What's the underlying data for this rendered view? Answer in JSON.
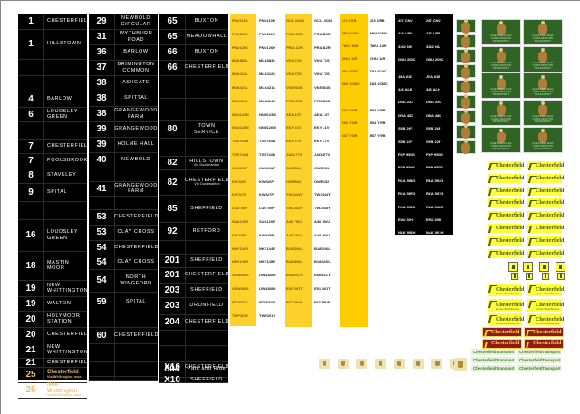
{
  "sheet": {
    "blind1": {
      "rows": [
        {
          "num": "1",
          "dest": "CHESTERFIELD"
        },
        {
          "num": "1",
          "dest": "HILLSTOWN"
        },
        {
          "num": "",
          "dest": ""
        },
        {
          "num": "",
          "dest": ""
        },
        {
          "num": "4",
          "dest": "BARLOW"
        },
        {
          "num": "6",
          "dest": "LOUDSLEY GREEN"
        },
        {
          "num": "",
          "dest": ""
        },
        {
          "num": "7",
          "dest": "CHESTERFIELD"
        },
        {
          "num": "7",
          "dest": "POOLSBROOK"
        },
        {
          "num": "8",
          "dest": "STAVELEY"
        },
        {
          "num": "9",
          "dest": "SPITAL"
        },
        {
          "num": "",
          "dest": ""
        },
        {
          "num": "16",
          "dest": "LOUDSLEY GREEN"
        },
        {
          "num": "18",
          "dest": "MASTIN MOOR"
        },
        {
          "num": "19",
          "dest": "NEW WHITTINGTON"
        },
        {
          "num": "19",
          "dest": "WALTON"
        },
        {
          "num": "20",
          "dest": "HOLYMOOR STATION"
        },
        {
          "num": "20",
          "dest": "CHESTERFIELD"
        },
        {
          "num": "21",
          "dest": "NEW WHITTINGTON"
        },
        {
          "num": "21",
          "dest": "CHESTERFIELD"
        },
        {
          "num": "25",
          "dest": "Chesterfield",
          "via": "Via Whittington moor"
        },
        {
          "num": "25",
          "dest": "New Whittington",
          "via": "Via Whittington moor"
        }
      ]
    },
    "blind2": {
      "rows": [
        {
          "num": "29",
          "dest": "NEWBOLD CIRCULAR"
        },
        {
          "num": "31",
          "dest": "WYTHBURN ROAD"
        },
        {
          "num": "36",
          "dest": "BARLOW"
        },
        {
          "num": "37",
          "dest": "BRIMINGTON COMMON"
        },
        {
          "num": "38",
          "dest": "ASHGATE"
        },
        {
          "num": "38",
          "dest": "SPITTAL"
        },
        {
          "num": "38",
          "dest": "GRANGEWOOD FARM"
        },
        {
          "num": "39",
          "dest": "GRANGEWOOD"
        },
        {
          "num": "39",
          "dest": "HOLME HALL"
        },
        {
          "num": "40",
          "dest": "NEWBOLD"
        },
        {
          "num": "",
          "dest": ""
        },
        {
          "num": "41",
          "dest": "GRANGEWOOD FARM"
        },
        {
          "num": "",
          "dest": ""
        },
        {
          "num": "53",
          "dest": "CHESTERFIELD"
        },
        {
          "num": "53",
          "dest": "CLAY CROSS"
        },
        {
          "num": "54",
          "dest": "CHESTERFIELD"
        },
        {
          "num": "54",
          "dest": "CLAY CROSS"
        },
        {
          "num": "54",
          "dest": "NORTH WINGFORD"
        },
        {
          "num": "59",
          "dest": "SPITAL"
        },
        {
          "num": "",
          "dest": ""
        },
        {
          "num": "60",
          "dest": "CHESTERFIELD"
        },
        {
          "num": "",
          "dest": ""
        },
        {
          "num": "",
          "dest": ""
        },
        {
          "num": "",
          "dest": ""
        }
      ]
    },
    "blind3": {
      "rows": [
        {
          "num": "65",
          "dest": "BUXTON"
        },
        {
          "num": "65",
          "dest": "MEADOWHALL"
        },
        {
          "num": "66",
          "dest": "BUXTON"
        },
        {
          "num": "66",
          "dest": "CHESTERFIELD"
        },
        {
          "num": "",
          "dest": ""
        },
        {
          "num": "",
          "dest": ""
        },
        {
          "num": "80",
          "dest": "TOWN SERVICE"
        },
        {
          "num": "",
          "dest": ""
        },
        {
          "num": "82",
          "dest": "HILLSTOWN",
          "via": "Via Duckmanton"
        },
        {
          "num": "82",
          "dest": "CHESTERFIELD",
          "via": "Via Duckmanton"
        },
        {
          "num": "85",
          "dest": "SHEFFIELD"
        },
        {
          "num": "92",
          "dest": "RETFORD"
        },
        {
          "num": "",
          "dest": ""
        },
        {
          "num": "201",
          "dest": "SHEFFIELD"
        },
        {
          "num": "201",
          "dest": "CHESTERFIELD"
        },
        {
          "num": "203",
          "dest": "SHEFFIELD"
        },
        {
          "num": "203",
          "dest": "DRONFIELD"
        },
        {
          "num": "204",
          "dest": "CHESTERFIELD"
        },
        {
          "num": "",
          "dest": ""
        },
        {
          "num": "",
          "dest": ""
        },
        {
          "num": "504",
          "dest": "Park and Ride"
        },
        {
          "num": "X10",
          "dest": "SHEFFIELD"
        },
        {
          "num": "X10",
          "dest": "CHESTERFIELD"
        }
      ]
    },
    "plates": {
      "groupA": [
        "PNU110K",
        "PNU112K",
        "PNU126K",
        "MLK883L",
        "MLK412L",
        "MLK421L",
        "MLH424L",
        "NNU123M",
        "NNU126M",
        "TGS764M",
        "TGS744M",
        "KUC211P",
        "KWJ26P",
        "KWJ27P",
        "LUG 50P",
        "SUA120R",
        "KWJ25R",
        "NKY144R",
        "NKY145R",
        "UWA585S",
        "UWA589S",
        "PTD652S",
        "TWP261Y"
      ],
      "groupB": [
        "GCL 431N",
        "PRA115R",
        "PRA112R",
        "VKU 71S",
        "VKU 72S",
        "VKE564S",
        "PTD640S",
        "AEA 13T",
        "EKY 21V",
        "EKY 27V",
        "JAD477V",
        "OWE531",
        "OWE532",
        "TWJ344Y",
        "TWJ343Y",
        "A46 YWJ",
        "A48 YWJ",
        "B180DKL",
        "B184DKL",
        "E804OCY",
        "E51 WOT",
        "F67 PKW"
      ],
      "groupC": [
        "223 URB",
        "NRA615M",
        "TWU 14W",
        "OHU 16R",
        "D82 ICMC",
        "D83 2CMC",
        "E84 YWB",
        "E84 YWB",
        "E87 YWB"
      ],
      "groupD": [
        "257 CNU",
        "226 LRB",
        "3262 NU",
        "GNU 200C",
        "JRA 63E",
        "426 ALH",
        "DNU 22C",
        "GRA 48C",
        "SRB 26F",
        "SRB 22F",
        "FKP 950G",
        "FKP 950G",
        "RKA 594G",
        "RKA 597G",
        "RKA 598G",
        "ENU 30H",
        "NAK 901H"
      ]
    },
    "badges": {
      "crest_label": "CHESTERFIELD CORPORATION TRANSPORT",
      "chesterfield_logo": "Chesterfield",
      "chesterfield_tagline": "For the chesterfield bus",
      "transport_left": "Chesterfield",
      "transport_right": "Transport"
    },
    "colors": {
      "blind_bg": "#000000",
      "plate_yellow": "#fdd02a",
      "crest_green": "#2f6424",
      "logo_yellow": "#ffff3c",
      "logo_red": "#8e1c12",
      "transport_green": "#3a8a2a"
    }
  }
}
